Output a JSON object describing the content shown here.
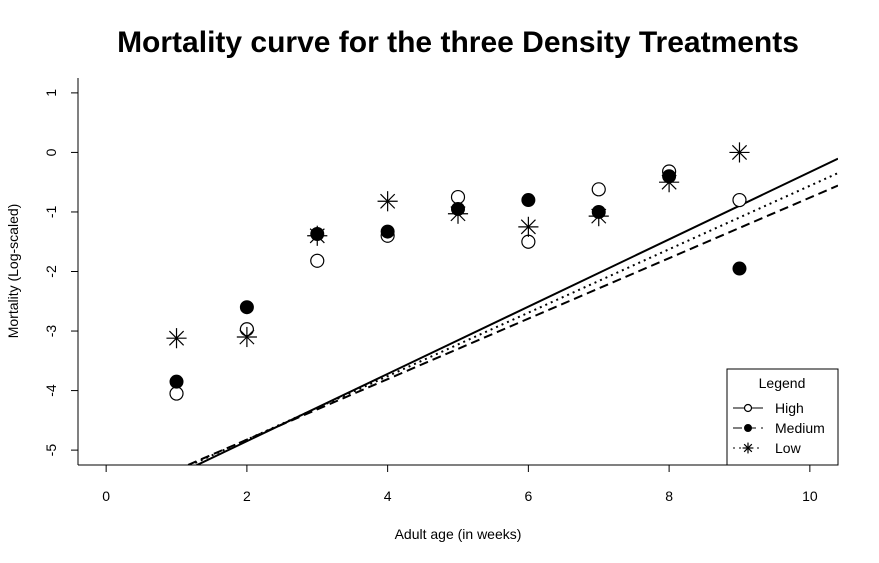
{
  "chart_data": {
    "type": "scatter",
    "title": "Mortality curve for the three Density Treatments",
    "xlabel": "Adult age (in weeks)",
    "ylabel": "Mortality (Log-scaled)",
    "xlim": [
      -0.4,
      10.4
    ],
    "ylim": [
      -5.25,
      1.25
    ],
    "xticks": [
      0,
      2,
      4,
      6,
      8,
      10
    ],
    "yticks": [
      -5,
      -4,
      -3,
      -2,
      -1,
      0,
      1
    ],
    "legend": {
      "title": "Legend",
      "position": "bottom-right",
      "entries": [
        "High",
        "Medium",
        "Low"
      ]
    },
    "series": [
      {
        "name": "High",
        "marker": "open-circle",
        "line": "solid",
        "x": [
          1,
          2,
          3,
          4,
          5,
          6,
          7,
          8,
          9
        ],
        "y": [
          -4.05,
          -2.97,
          -1.82,
          -1.4,
          -0.75,
          -1.5,
          -0.62,
          -0.32,
          -0.8
        ],
        "fit": {
          "intercept": -5.98,
          "slope": 0.565
        }
      },
      {
        "name": "Medium",
        "marker": "filled-circle",
        "line": "dashed",
        "x": [
          1,
          2,
          3,
          4,
          5,
          6,
          7,
          8,
          9
        ],
        "y": [
          -3.85,
          -2.6,
          -1.37,
          -1.33,
          -0.95,
          -0.8,
          -1.0,
          -0.4,
          -1.95
        ],
        "fit": {
          "intercept": -5.84,
          "slope": 0.508
        }
      },
      {
        "name": "Low",
        "marker": "asterisk",
        "line": "dotted",
        "x": [
          1,
          2,
          3,
          4,
          5,
          6,
          7,
          8,
          9
        ],
        "y": [
          -3.12,
          -3.1,
          -1.4,
          -0.82,
          -1.03,
          -1.25,
          -1.07,
          -0.5,
          0.0
        ],
        "fit": {
          "intercept": -5.89,
          "slope": 0.533
        }
      }
    ]
  }
}
